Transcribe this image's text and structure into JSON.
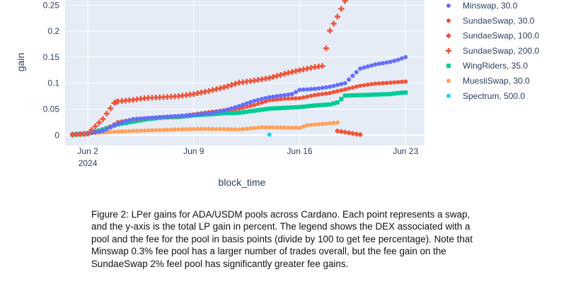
{
  "chart_data": {
    "type": "scatter",
    "xlabel": "block_time",
    "ylabel": "gain",
    "x_range": [
      "2024-05-31T12:00",
      "2024-06-24T06:00"
    ],
    "ylim": [
      -0.02,
      0.26
    ],
    "grid": true,
    "legend_placement": "right",
    "plot_bgcolor": "#e5ecf6",
    "x_ticks": [
      {
        "value": "2024-06-02",
        "label": "Jun 2",
        "sublabel": "2024"
      },
      {
        "value": "2024-06-09",
        "label": "Jun 9",
        "sublabel": ""
      },
      {
        "value": "2024-06-16",
        "label": "Jun 16",
        "sublabel": ""
      },
      {
        "value": "2024-06-23",
        "label": "Jun 23",
        "sublabel": ""
      }
    ],
    "y_ticks": [
      {
        "value": 0,
        "label": "0"
      },
      {
        "value": 0.05,
        "label": "0.05"
      },
      {
        "value": 0.1,
        "label": "0.1"
      },
      {
        "value": 0.15,
        "label": "0.15"
      },
      {
        "value": 0.2,
        "label": "0.2"
      },
      {
        "value": 0.25,
        "label": "0.25"
      }
    ],
    "series": [
      {
        "name": "Minswap, 30.0",
        "color": "#636efa",
        "symbol": "circle",
        "x": [
          "2024-06-01",
          "2024-06-02",
          "2024-06-03",
          "2024-06-04",
          "2024-06-05",
          "2024-06-06",
          "2024-06-07",
          "2024-06-08",
          "2024-06-09",
          "2024-06-10",
          "2024-06-11",
          "2024-06-12",
          "2024-06-13",
          "2024-06-14",
          "2024-06-15",
          "2024-06-15T12:00",
          "2024-06-16",
          "2024-06-17",
          "2024-06-18",
          "2024-06-19",
          "2024-06-20",
          "2024-06-21",
          "2024-06-22",
          "2024-06-22T12:00",
          "2024-06-23"
        ],
        "y": [
          0.001,
          0.003,
          0.008,
          0.022,
          0.031,
          0.033,
          0.035,
          0.037,
          0.039,
          0.042,
          0.047,
          0.056,
          0.066,
          0.073,
          0.077,
          0.079,
          0.087,
          0.089,
          0.093,
          0.1,
          0.128,
          0.136,
          0.141,
          0.145,
          0.15
        ]
      },
      {
        "name": "SundaeSwap, 30.0",
        "color": "#ef553b",
        "symbol": "circle",
        "x": [
          "2024-06-01",
          "2024-06-02",
          "2024-06-03",
          "2024-06-04",
          "2024-06-05",
          "2024-06-06",
          "2024-06-07",
          "2024-06-08",
          "2024-06-09",
          "2024-06-10",
          "2024-06-11",
          "2024-06-12",
          "2024-06-13",
          "2024-06-14",
          "2024-06-15",
          "2024-06-16",
          "2024-06-17",
          "2024-06-18",
          "2024-06-19",
          "2024-06-20",
          "2024-06-21",
          "2024-06-22",
          "2024-06-23"
        ],
        "y": [
          0.001,
          0.003,
          0.008,
          0.025,
          0.03,
          0.033,
          0.035,
          0.036,
          0.04,
          0.044,
          0.048,
          0.051,
          0.058,
          0.067,
          0.07,
          0.071,
          0.077,
          0.081,
          0.088,
          0.095,
          0.099,
          0.101,
          0.103
        ]
      },
      {
        "name": "SundaeSwap, 100.0",
        "color": "#ef553b",
        "symbol": "diamond",
        "x": [
          "2024-06-18T12:00",
          "2024-06-20"
        ],
        "y": [
          0.008,
          0.001
        ]
      },
      {
        "name": "SundaeSwap, 200.0",
        "color": "#ef553b",
        "symbol": "cross",
        "x": [
          "2024-06-01",
          "2024-06-02",
          "2024-06-03",
          "2024-06-03T18:00",
          "2024-06-04",
          "2024-06-05",
          "2024-06-06",
          "2024-06-07",
          "2024-06-08",
          "2024-06-09",
          "2024-06-09T12:00",
          "2024-06-10",
          "2024-06-11",
          "2024-06-12",
          "2024-06-13",
          "2024-06-14",
          "2024-06-15",
          "2024-06-16",
          "2024-06-17",
          "2024-06-17T12:00",
          "2024-06-18",
          "2024-06-18T12:00",
          "2024-06-19"
        ],
        "y": [
          0.001,
          0.003,
          0.031,
          0.062,
          0.065,
          0.068,
          0.072,
          0.073,
          0.075,
          0.079,
          0.082,
          0.085,
          0.092,
          0.101,
          0.105,
          0.11,
          0.118,
          0.125,
          0.131,
          0.133,
          0.201,
          0.228,
          0.258
        ]
      },
      {
        "name": "WingRiders, 35.0",
        "color": "#00cc96",
        "symbol": "square",
        "x": [
          "2024-06-01",
          "2024-06-02",
          "2024-06-03",
          "2024-06-04",
          "2024-06-05",
          "2024-06-06",
          "2024-06-07",
          "2024-06-08",
          "2024-06-09",
          "2024-06-10",
          "2024-06-11",
          "2024-06-12",
          "2024-06-14",
          "2024-06-16",
          "2024-06-17",
          "2024-06-18",
          "2024-06-18T12:00",
          "2024-06-19",
          "2024-06-22",
          "2024-06-22T12:00",
          "2024-06-23"
        ],
        "y": [
          0.001,
          0.003,
          0.011,
          0.021,
          0.026,
          0.031,
          0.034,
          0.035,
          0.038,
          0.04,
          0.042,
          0.043,
          0.051,
          0.054,
          0.057,
          0.059,
          0.063,
          0.076,
          0.079,
          0.081,
          0.082
        ]
      },
      {
        "name": "MuesliSwap, 30.0",
        "color": "#fea15a",
        "symbol": "circle",
        "x": [
          "2024-06-02",
          "2024-06-03T12:00",
          "2024-06-05",
          "2024-06-08",
          "2024-06-09T12:00",
          "2024-06-12",
          "2024-06-13T12:00",
          "2024-06-16",
          "2024-06-16T12:00",
          "2024-06-18T12:00"
        ],
        "y": [
          0.003,
          0.006,
          0.008,
          0.011,
          0.012,
          0.011,
          0.015,
          0.014,
          0.019,
          0.024
        ]
      },
      {
        "name": "Spectrum, 500.0",
        "color": "#19d3f3",
        "symbol": "circle",
        "x": [
          "2024-06-14"
        ],
        "y": [
          0.001
        ]
      }
    ]
  },
  "caption": {
    "text": "Figure 2: LPer gains for ADA/USDM pools across Cardano. Each point represents a swap, and the y-axis is the total LP gain in percent. The legend shows the DEX associated with a pool and the fee for the pool in basis points (divide by 100 to get fee percentage). Note that Minswap 0.3% fee pool has a larger number of trades overall, but the fee gain on the SundaeSwap 2% feel pool has significantly greater fee gains."
  }
}
